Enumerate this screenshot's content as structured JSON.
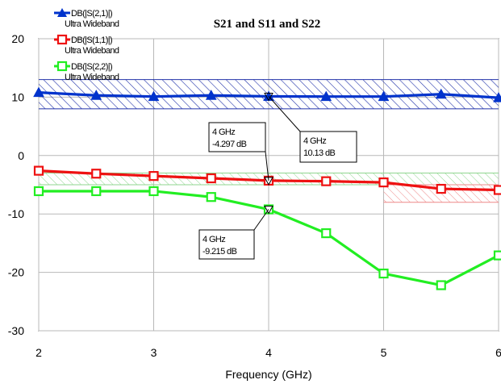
{
  "chart_data": {
    "type": "line",
    "title": "S21 and S11 and S22",
    "xlabel": "Frequency (GHz)",
    "ylabel": "",
    "xlim": [
      2,
      6
    ],
    "ylim": [
      -30,
      20
    ],
    "x_ticks": [
      "2",
      "3",
      "4",
      "5",
      "6"
    ],
    "y_ticks": [
      "20",
      "10",
      "0",
      "-10",
      "-20",
      "-30"
    ],
    "grid": true,
    "legend_position": "top-left",
    "series": [
      {
        "name": "DB(|S(2,1)|)",
        "sub_label": "Ultra Wideband",
        "color": "#0033cc",
        "marker": "triangle",
        "x": [
          2,
          2.5,
          3,
          3.5,
          4,
          4.5,
          5,
          5.5,
          6
        ],
        "y": [
          10.8,
          10.3,
          10.1,
          10.3,
          10.13,
          10.1,
          10.1,
          10.5,
          9.9
        ]
      },
      {
        "name": "DB(|S(1,1)|)",
        "sub_label": "Ultra Wideband",
        "color": "#ee1111",
        "marker": "square",
        "x": [
          2,
          2.5,
          3,
          3.5,
          4,
          4.5,
          5,
          5.5,
          6
        ],
        "y": [
          -2.6,
          -3.1,
          -3.5,
          -3.9,
          -4.297,
          -4.4,
          -4.6,
          -5.7,
          -5.9
        ]
      },
      {
        "name": "DB(|S(2,2)|)",
        "sub_label": "Ultra Wideband",
        "color": "#22ee22",
        "marker": "square",
        "x": [
          2,
          2.5,
          3,
          3.5,
          4,
          4.5,
          5,
          5.5,
          6
        ],
        "y": [
          -6.1,
          -6.1,
          -6.1,
          -7.1,
          -9.215,
          -13.3,
          -20.2,
          -22.2,
          -17.1
        ]
      }
    ],
    "goal_bands": [
      {
        "color": "#2233aa",
        "x": [
          2,
          6
        ],
        "y": [
          8,
          13
        ]
      },
      {
        "color": "#8fd68f",
        "x": [
          2,
          6
        ],
        "y": [
          -5,
          -3
        ]
      },
      {
        "color": "#ee8888",
        "x": [
          5,
          6
        ],
        "y": [
          -8,
          -5
        ]
      }
    ],
    "annotations": [
      {
        "x": 4,
        "y": 10.13,
        "line1": "4 GHz",
        "line2": "10.13 dB"
      },
      {
        "x": 4,
        "y": -4.297,
        "line1": "4 GHz",
        "line2": "-4.297 dB"
      },
      {
        "x": 4,
        "y": -9.215,
        "line1": "4 GHz",
        "line2": "-9.215 dB"
      }
    ]
  }
}
